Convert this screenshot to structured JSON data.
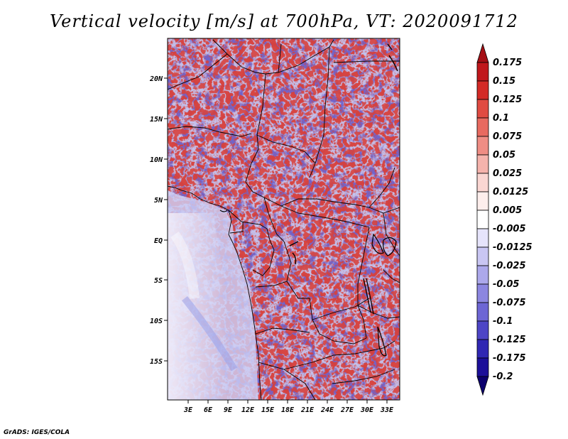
{
  "title": "Vertical velocity [m/s] at 700hPa, VT: 2020091712",
  "footer": "GrADS: IGES/COLA",
  "map": {
    "lat_labels": [
      "20N",
      "15N",
      "10N",
      "5N",
      "EQ",
      "5S",
      "10S",
      "15S"
    ],
    "lon_labels": [
      "3E",
      "6E",
      "9E",
      "12E",
      "15E",
      "18E",
      "21E",
      "24E",
      "27E",
      "30E",
      "33E"
    ]
  },
  "colorbar": {
    "levels": [
      "0.175",
      "0.15",
      "0.125",
      "0.1",
      "0.075",
      "0.05",
      "0.025",
      "0.0125",
      "0.005",
      "-0.005",
      "-0.0125",
      "-0.025",
      "-0.05",
      "-0.075",
      "-0.1",
      "-0.125",
      "-0.175",
      "-0.2"
    ],
    "colors": [
      "#a50f15",
      "#c0171c",
      "#d32a26",
      "#e04b42",
      "#e86a60",
      "#ef8d84",
      "#f5b3ac",
      "#fad6d2",
      "#fdeeec",
      "#ffffff",
      "#e6e4fb",
      "#c9c6f3",
      "#aca8eb",
      "#8c86e0",
      "#6d66d4",
      "#4d45c6",
      "#3027b3",
      "#1c0f99",
      "#0c006e"
    ]
  }
}
